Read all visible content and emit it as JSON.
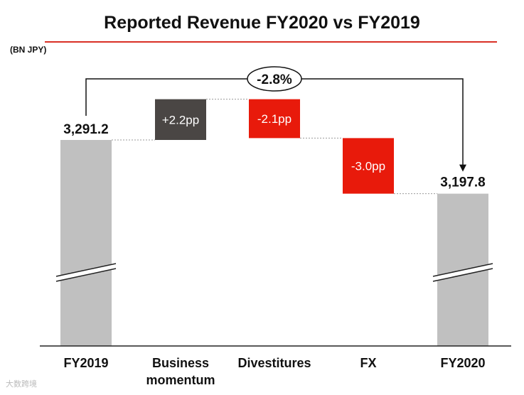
{
  "title": "Reported Revenue FY2020 vs FY2019",
  "unit_label": "(BN JPY)",
  "watermark": "大数跨境",
  "colors": {
    "total": "#c0c0c0",
    "increase": "#4a4644",
    "decrease": "#e81a0b",
    "title_rule": "#d93025",
    "connector": "#999999",
    "axis": "#222222"
  },
  "chart_data": {
    "type": "bar",
    "subtype": "waterfall",
    "title": "Reported Revenue FY2020 vs FY2019",
    "unit": "BN JPY",
    "categories": [
      "FY2019",
      "Business momentum",
      "Divestitures",
      "FX",
      "FY2020"
    ],
    "category_label_lines": [
      [
        "FY2019"
      ],
      [
        "Business",
        "momentum"
      ],
      [
        "Divestitures"
      ],
      [
        "FX"
      ],
      [
        "FY2020"
      ]
    ],
    "start_value": 3291.2,
    "end_value": 3197.8,
    "start_label": "3,291.2",
    "end_label": "3,197.8",
    "steps": [
      {
        "category": "Business momentum",
        "delta_pp": 2.2,
        "label": "+2.2pp",
        "kind": "increase"
      },
      {
        "category": "Divestitures",
        "delta_pp": -2.1,
        "label": "-2.1pp",
        "kind": "decrease"
      },
      {
        "category": "FX",
        "delta_pp": -3.0,
        "label": "-3.0pp",
        "kind": "decrease"
      }
    ],
    "total_change_label": "-2.8%",
    "axis_break": true
  }
}
